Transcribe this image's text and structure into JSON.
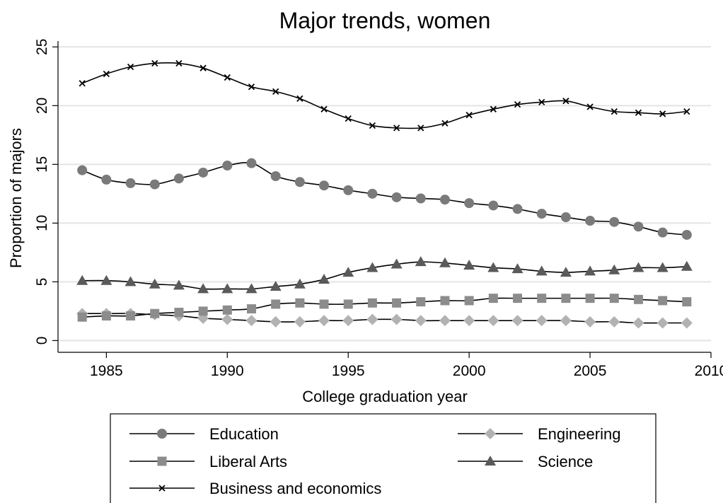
{
  "chart_data": {
    "type": "line",
    "title": "Major trends, women",
    "xlabel": "College graduation year",
    "ylabel": "Proportion of majors",
    "xlim": [
      1983,
      2010
    ],
    "ylim": [
      -1,
      25.5
    ],
    "xticks": [
      1985,
      1990,
      1995,
      2000,
      2005,
      2010
    ],
    "yticks": [
      0,
      5,
      10,
      15,
      20,
      25
    ],
    "grid": true,
    "legend_position": "bottom",
    "x": [
      1984,
      1985,
      1986,
      1987,
      1988,
      1989,
      1990,
      1991,
      1992,
      1993,
      1994,
      1995,
      1996,
      1997,
      1998,
      1999,
      2000,
      2001,
      2002,
      2003,
      2004,
      2005,
      2006,
      2007,
      2008,
      2009
    ],
    "series": [
      {
        "name": "Education",
        "marker": "circle",
        "color": "#7a7a7a",
        "values": [
          14.5,
          13.7,
          13.4,
          13.3,
          13.8,
          14.3,
          14.9,
          15.1,
          14.0,
          13.5,
          13.2,
          12.8,
          12.5,
          12.2,
          12.1,
          12.0,
          11.7,
          11.5,
          11.2,
          10.8,
          10.5,
          10.2,
          10.1,
          9.7,
          9.2,
          9.0
        ]
      },
      {
        "name": "Engineering",
        "marker": "diamond",
        "color": "#b2b2b2",
        "values": [
          2.3,
          2.3,
          2.3,
          2.2,
          2.1,
          1.9,
          1.8,
          1.7,
          1.6,
          1.6,
          1.7,
          1.7,
          1.8,
          1.8,
          1.7,
          1.7,
          1.7,
          1.7,
          1.7,
          1.7,
          1.7,
          1.6,
          1.6,
          1.5,
          1.5,
          1.5
        ]
      },
      {
        "name": "Liberal Arts",
        "marker": "square",
        "color": "#8c8c8c",
        "values": [
          2.0,
          2.1,
          2.1,
          2.3,
          2.4,
          2.5,
          2.6,
          2.7,
          3.1,
          3.2,
          3.1,
          3.1,
          3.2,
          3.2,
          3.3,
          3.4,
          3.4,
          3.6,
          3.6,
          3.6,
          3.6,
          3.6,
          3.6,
          3.5,
          3.4,
          3.3
        ]
      },
      {
        "name": "Science",
        "marker": "triangle",
        "color": "#5a5a5a",
        "values": [
          5.1,
          5.1,
          5.0,
          4.8,
          4.7,
          4.4,
          4.4,
          4.4,
          4.6,
          4.8,
          5.2,
          5.8,
          6.2,
          6.5,
          6.7,
          6.6,
          6.4,
          6.2,
          6.1,
          5.9,
          5.8,
          5.9,
          6.0,
          6.2,
          6.2,
          6.3
        ]
      },
      {
        "name": "Business and economics",
        "marker": "cross",
        "color": "#000000",
        "values": [
          21.9,
          22.7,
          23.3,
          23.6,
          23.6,
          23.2,
          22.4,
          21.6,
          21.2,
          20.6,
          19.7,
          18.9,
          18.3,
          18.1,
          18.1,
          18.5,
          19.2,
          19.7,
          20.1,
          20.3,
          20.4,
          19.9,
          19.5,
          19.4,
          19.3,
          19.5
        ]
      }
    ]
  }
}
